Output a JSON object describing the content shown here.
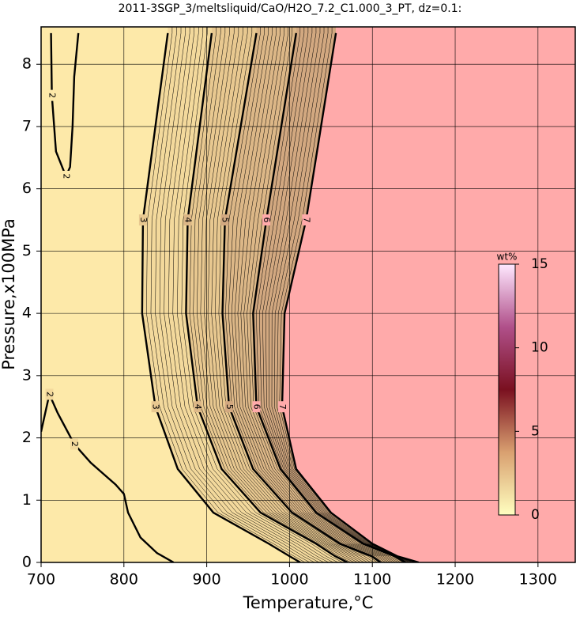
{
  "chart_data": {
    "type": "contour",
    "title": "2011-3SGP_3/meltsliquid/CaO/H2O_7.2_C1.000_3_PT, dz=0.1:",
    "xlabel": "Temperature,°C",
    "ylabel": "Pressure,x100MPa",
    "xlim": [
      700,
      1345
    ],
    "ylim": [
      0,
      8.6
    ],
    "xticks": [
      700,
      800,
      900,
      1000,
      1100,
      1200,
      1300
    ],
    "yticks": [
      0,
      1,
      2,
      3,
      4,
      5,
      6,
      7,
      8
    ],
    "grid": true,
    "contours": [
      {
        "level": 2,
        "x": [
          712,
          713,
          718,
          730,
          735,
          738,
          740,
          745
        ],
        "y": [
          8.5,
          7.5,
          6.6,
          6.2,
          6.35,
          7.0,
          7.8,
          8.5
        ]
      },
      {
        "level": 2,
        "x": [
          700,
          710,
          720,
          740,
          760,
          790,
          800,
          805,
          820,
          840,
          860
        ],
        "y": [
          2.1,
          2.7,
          2.4,
          1.9,
          1.6,
          1.25,
          1.1,
          0.8,
          0.4,
          0.15,
          0
        ]
      },
      {
        "level": 3,
        "x": [
          853,
          823,
          822,
          838,
          865,
          908,
          975,
          1000,
          1013
        ],
        "y": [
          8.5,
          5.5,
          4,
          2.5,
          1.5,
          0.8,
          0.3,
          0.1,
          0
        ]
      },
      {
        "level": 4,
        "x": [
          906,
          877,
          875,
          889,
          918,
          965,
          1032,
          1055,
          1070
        ],
        "y": [
          8.5,
          5.5,
          4,
          2.5,
          1.5,
          0.8,
          0.3,
          0.1,
          0
        ]
      },
      {
        "level": 5,
        "x": [
          960,
          922,
          919,
          927,
          956,
          1003,
          1061,
          1099,
          1110
        ],
        "y": [
          8.5,
          5.5,
          4,
          2.5,
          1.5,
          0.8,
          0.3,
          0.1,
          0
        ]
      },
      {
        "level": 6,
        "x": [
          1008,
          972,
          956,
          960,
          989,
          1032,
          1089,
          1127,
          1140
        ],
        "y": [
          8.5,
          5.5,
          4,
          2.5,
          1.5,
          0.8,
          0.3,
          0.1,
          0
        ]
      },
      {
        "level": 7,
        "x": [
          1056,
          1020,
          994,
          991,
          1008,
          1050,
          1100,
          1130,
          1156
        ],
        "y": [
          8.5,
          5.5,
          4,
          2.5,
          1.5,
          0.8,
          0.3,
          0.1,
          0
        ]
      }
    ],
    "fill_colors": [
      "#fde9a9",
      "#f3d99c",
      "#e8c890",
      "#dcb787",
      "#d2a880",
      "#ffaaaa"
    ],
    "colorbar": {
      "label": "wt%",
      "lim": [
        0,
        15
      ],
      "ticks": [
        0,
        5,
        10,
        15
      ],
      "colors": [
        "#ffffc0",
        "#d9a070",
        "#7a1020",
        "#b0508a",
        "#ffe8ff"
      ]
    }
  }
}
